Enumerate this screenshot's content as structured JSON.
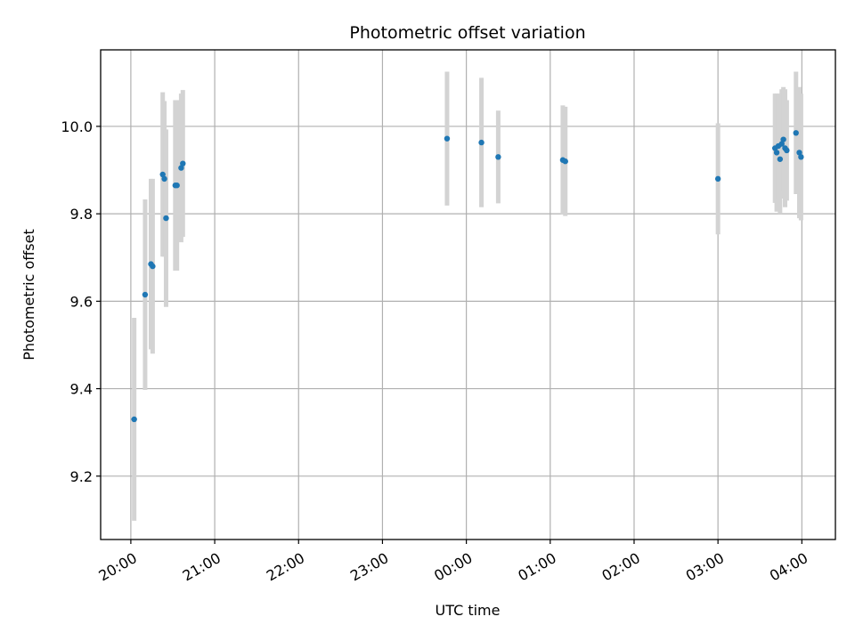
{
  "chart_data": {
    "type": "scatter",
    "title": "Photometric offset variation",
    "xlabel": "UTC time",
    "ylabel": "Photometric offset",
    "x_unit": "hours after 20:00 UTC",
    "xlim": [
      -0.36,
      8.4
    ],
    "ylim": [
      9.055,
      10.175
    ],
    "x_ticks": [
      {
        "value": 0,
        "label": "20:00"
      },
      {
        "value": 1,
        "label": "21:00"
      },
      {
        "value": 2,
        "label": "22:00"
      },
      {
        "value": 3,
        "label": "23:00"
      },
      {
        "value": 4,
        "label": "00:00"
      },
      {
        "value": 5,
        "label": "01:00"
      },
      {
        "value": 6,
        "label": "02:00"
      },
      {
        "value": 7,
        "label": "03:00"
      },
      {
        "value": 8,
        "label": "04:00"
      }
    ],
    "y_ticks": [
      {
        "value": 9.2,
        "label": "9.2"
      },
      {
        "value": 9.4,
        "label": "9.4"
      },
      {
        "value": 9.6,
        "label": "9.6"
      },
      {
        "value": 9.8,
        "label": "9.8"
      },
      {
        "value": 10.0,
        "label": "10.0"
      }
    ],
    "grid": true,
    "colors": {
      "points": "#1f77b4",
      "errorbars": "#d3d3d3",
      "grid": "#b0b0b0"
    },
    "points": [
      {
        "x": 0.04,
        "y": 9.33,
        "err": 0.232
      },
      {
        "x": 0.17,
        "y": 9.615,
        "err": 0.218
      },
      {
        "x": 0.24,
        "y": 9.685,
        "err": 0.195
      },
      {
        "x": 0.26,
        "y": 9.68,
        "err": 0.2
      },
      {
        "x": 0.38,
        "y": 9.89,
        "err": 0.188
      },
      {
        "x": 0.4,
        "y": 9.88,
        "err": 0.178
      },
      {
        "x": 0.42,
        "y": 9.79,
        "err": 0.203
      },
      {
        "x": 0.53,
        "y": 9.865,
        "err": 0.195
      },
      {
        "x": 0.55,
        "y": 9.865,
        "err": 0.195
      },
      {
        "x": 0.6,
        "y": 9.905,
        "err": 0.17
      },
      {
        "x": 0.62,
        "y": 9.915,
        "err": 0.168
      },
      {
        "x": 3.77,
        "y": 9.972,
        "err": 0.153
      },
      {
        "x": 4.18,
        "y": 9.963,
        "err": 0.148
      },
      {
        "x": 4.38,
        "y": 9.93,
        "err": 0.106
      },
      {
        "x": 5.15,
        "y": 9.923,
        "err": 0.125
      },
      {
        "x": 5.18,
        "y": 9.92,
        "err": 0.125
      },
      {
        "x": 7.0,
        "y": 9.88,
        "err": 0.127
      },
      {
        "x": 7.68,
        "y": 9.95,
        "err": 0.125
      },
      {
        "x": 7.7,
        "y": 9.94,
        "err": 0.135
      },
      {
        "x": 7.72,
        "y": 9.955,
        "err": 0.12
      },
      {
        "x": 7.74,
        "y": 9.925,
        "err": 0.125
      },
      {
        "x": 7.76,
        "y": 9.96,
        "err": 0.125
      },
      {
        "x": 7.78,
        "y": 9.97,
        "err": 0.12
      },
      {
        "x": 7.8,
        "y": 9.95,
        "err": 0.135
      },
      {
        "x": 7.82,
        "y": 9.945,
        "err": 0.115
      },
      {
        "x": 7.93,
        "y": 9.985,
        "err": 0.14
      },
      {
        "x": 7.97,
        "y": 9.94,
        "err": 0.15
      },
      {
        "x": 7.99,
        "y": 9.93,
        "err": 0.145
      }
    ]
  }
}
